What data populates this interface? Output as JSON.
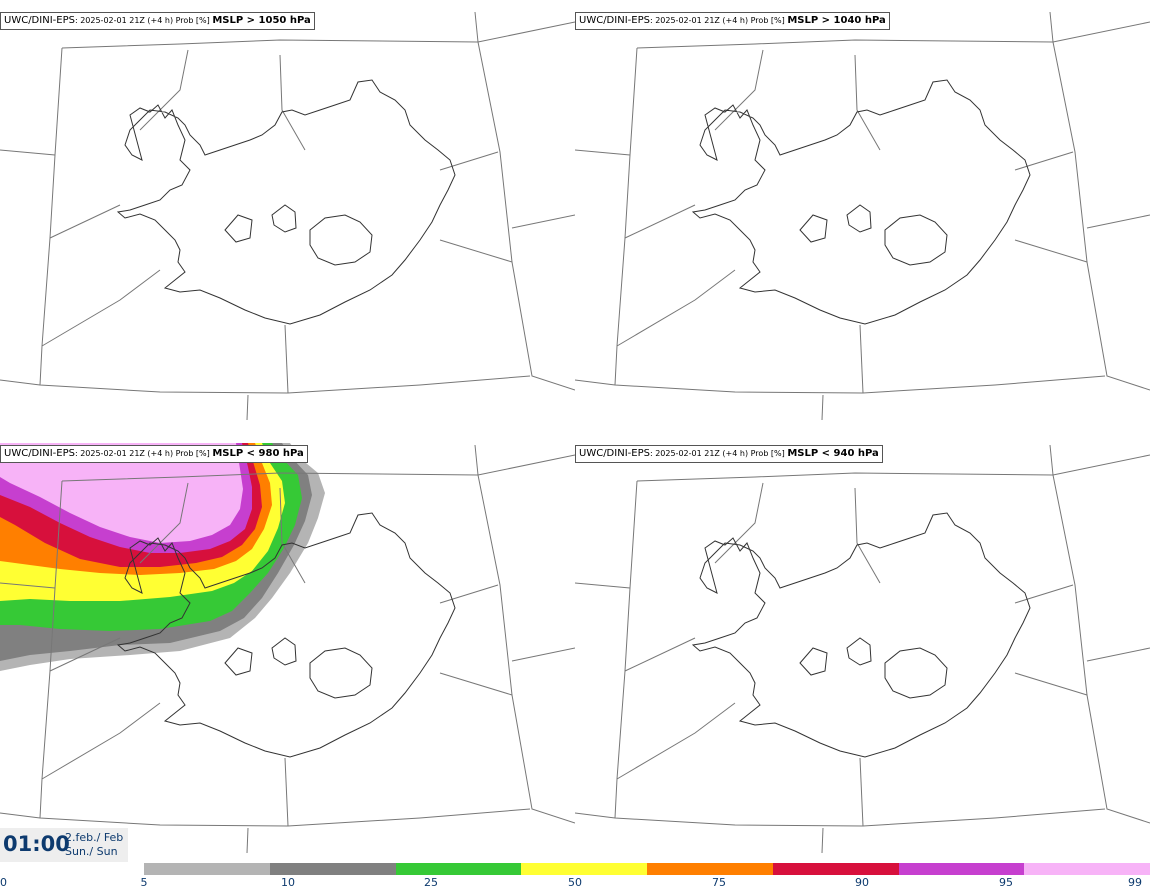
{
  "panels": [
    {
      "label_model": "UWC/DINI-EPS",
      "label_meta": ": 2025-02-01 21Z (+4 h) Prob [%] ",
      "label_field": "MSLP > 1050 hPa",
      "shaded": false
    },
    {
      "label_model": "UWC/DINI-EPS",
      "label_meta": ": 2025-02-01 21Z (+4 h) Prob [%] ",
      "label_field": "MSLP > 1040 hPa",
      "shaded": false
    },
    {
      "label_model": "UWC/DINI-EPS",
      "label_meta": ": 2025-02-01 21Z (+4 h) Prob [%] ",
      "label_field": "MSLP < 980 hPa",
      "shaded": true
    },
    {
      "label_model": "UWC/DINI-EPS",
      "label_meta": ": 2025-02-01 21Z (+4 h) Prob [%] ",
      "label_field": "MSLP < 940 hPa",
      "shaded": false
    }
  ],
  "time": {
    "clock": "01:00",
    "date_line1": "2.feb./ Feb",
    "date_line2": "Sun./ Sun"
  },
  "colorbar": {
    "ticks": [
      "0",
      "5",
      "10",
      "25",
      "50",
      "75",
      "90",
      "95",
      "99"
    ],
    "colors": [
      "#b4b4b4",
      "#808080",
      "#36c936",
      "#ffff33",
      "#ff7f00",
      "#d7103c",
      "#c63fcf",
      "#f7b3f7"
    ]
  }
}
